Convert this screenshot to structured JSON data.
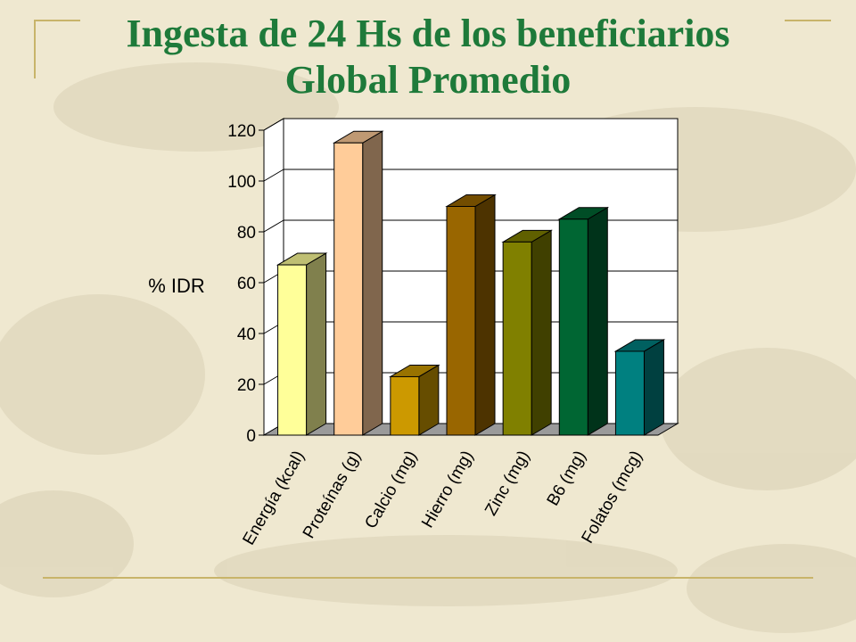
{
  "slide": {
    "title_line1": "Ingesta de 24 Hs de los beneficiarios",
    "title_line2": "Global  Promedio",
    "title_color": "#1e7a3a",
    "accent_line_color": "#c8b46a"
  },
  "chart_data": {
    "type": "bar",
    "style": "3d-column",
    "title": "",
    "xlabel": "",
    "ylabel": "% IDR",
    "ylim": [
      0,
      120
    ],
    "yticks": [
      0,
      20,
      40,
      60,
      80,
      100,
      120
    ],
    "grid": true,
    "legend": "none",
    "categories": [
      "Energía (kcal)",
      "Proteínas (g)",
      "Calcio (mg)",
      "Hierro (mg)",
      "Zinc (mg)",
      "B6 (mg)",
      "Folatos (mcg)"
    ],
    "values": [
      67,
      115,
      23,
      90,
      76,
      85,
      33
    ],
    "colors": [
      "#ffff99",
      "#ffcc99",
      "#cc9900",
      "#996600",
      "#808000",
      "#006633",
      "#008080"
    ]
  }
}
